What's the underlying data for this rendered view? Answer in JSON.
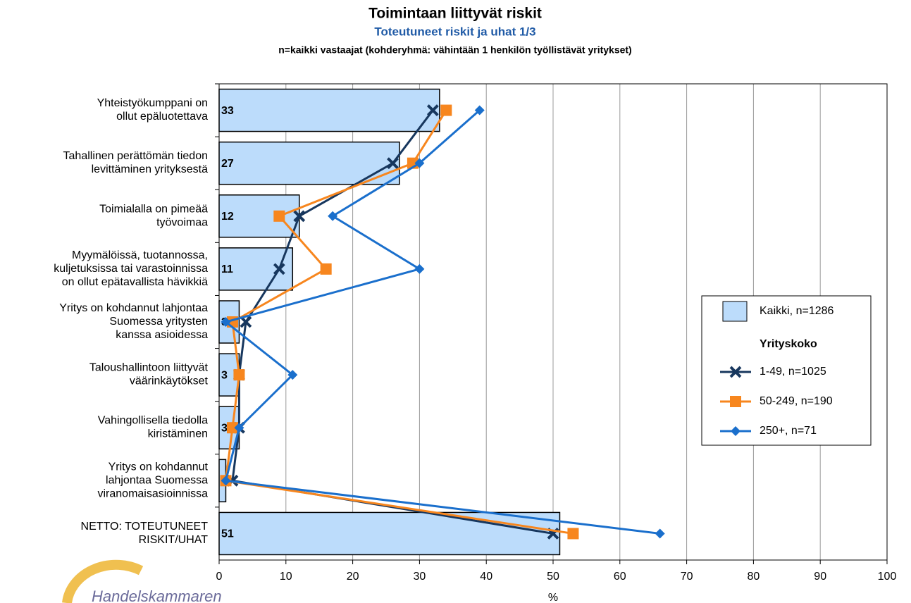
{
  "chart_data": {
    "type": "bar",
    "orientation": "horizontal",
    "title": "Toimintaan liittyvät riskit",
    "subtitle": "Toteutuneet riskit ja uhat 1/3",
    "note": "n=kaikki vastaajat (kohderyhmä: vähintään 1 henkilön työllistävät yritykset)",
    "categories": [
      "Yhteistyökumppani on\nollut epäluotettava",
      "Tahallinen perättömän tiedon\nlevittäminen yrityksestä",
      "Toimialalla on pimeää\ntyövoimaa",
      "Myymälöissä, tuotannossa,\nkuljetuksissa tai varastoinnissa\non ollut epätavallista hävikkiä",
      "Yritys on kohdannut lahjontaa\nSuomessa yritysten\nkanssa asioidessa",
      "Taloushallintoon liittyvät\nväärinkäytökset",
      "Vahingollisella tiedolla\nkiristäminen",
      "Yritys on kohdannut\nlahjontaa Suomessa\nviranomaisasioinnissa",
      "NETTO: TOTEUTUNEET\nRISKIT/UHAT"
    ],
    "series": [
      {
        "name": "Kaikki, n=1286",
        "type": "bar",
        "color": "#bcdcfb",
        "values": [
          33,
          27,
          12,
          11,
          3,
          3,
          3,
          1,
          51
        ]
      },
      {
        "name": "1-49, n=1025",
        "type": "line",
        "marker": "x",
        "color": "#17375e",
        "values": [
          32,
          26,
          12,
          9,
          4,
          3,
          3,
          2,
          50
        ]
      },
      {
        "name": "50-249, n=190",
        "type": "line",
        "marker": "square",
        "color": "#f7861e",
        "values": [
          34,
          29,
          9,
          16,
          2,
          3,
          2,
          1,
          53
        ]
      },
      {
        "name": "250+, n=71",
        "type": "line",
        "marker": "diamond",
        "color": "#1a6fcc",
        "values": [
          39,
          30,
          17,
          30,
          1,
          11,
          3,
          1,
          66
        ]
      }
    ],
    "legend_title": "Yrityskoko",
    "xlabel": "%",
    "xlim": [
      0,
      100
    ],
    "xticks": [
      0,
      10,
      20,
      30,
      40,
      50,
      60,
      70,
      80,
      90,
      100
    ],
    "grid": true
  },
  "logo_text": "Handelskammaren"
}
